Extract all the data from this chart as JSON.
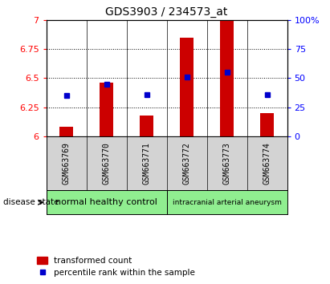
{
  "title": "GDS3903 / 234573_at",
  "samples": [
    "GSM663769",
    "GSM663770",
    "GSM663771",
    "GSM663772",
    "GSM663773",
    "GSM663774"
  ],
  "transformed_counts": [
    6.08,
    6.46,
    6.18,
    6.85,
    7.02,
    6.2
  ],
  "percentile_ranks": [
    35,
    45,
    36,
    51,
    55,
    36
  ],
  "ylim_left": [
    6.0,
    7.0
  ],
  "ylim_right": [
    0,
    100
  ],
  "yticks_left": [
    6.0,
    6.25,
    6.5,
    6.75,
    7.0
  ],
  "ytick_labels_left": [
    "6",
    "6.25",
    "6.5",
    "6.75",
    "7"
  ],
  "yticks_right": [
    0,
    25,
    50,
    75,
    100
  ],
  "ytick_labels_right": [
    "0",
    "25",
    "50",
    "75",
    "100%"
  ],
  "groups": [
    {
      "label": "normal healthy control",
      "color": "#90EE90"
    },
    {
      "label": "intracranial arterial aneurysm",
      "color": "#90EE90"
    }
  ],
  "bar_color": "#CC0000",
  "dot_color": "#0000CC",
  "bar_width": 0.35,
  "bg_color": "#D3D3D3",
  "disease_state_label": "disease state",
  "legend_bar_label": "transformed count",
  "legend_dot_label": "percentile rank within the sample"
}
